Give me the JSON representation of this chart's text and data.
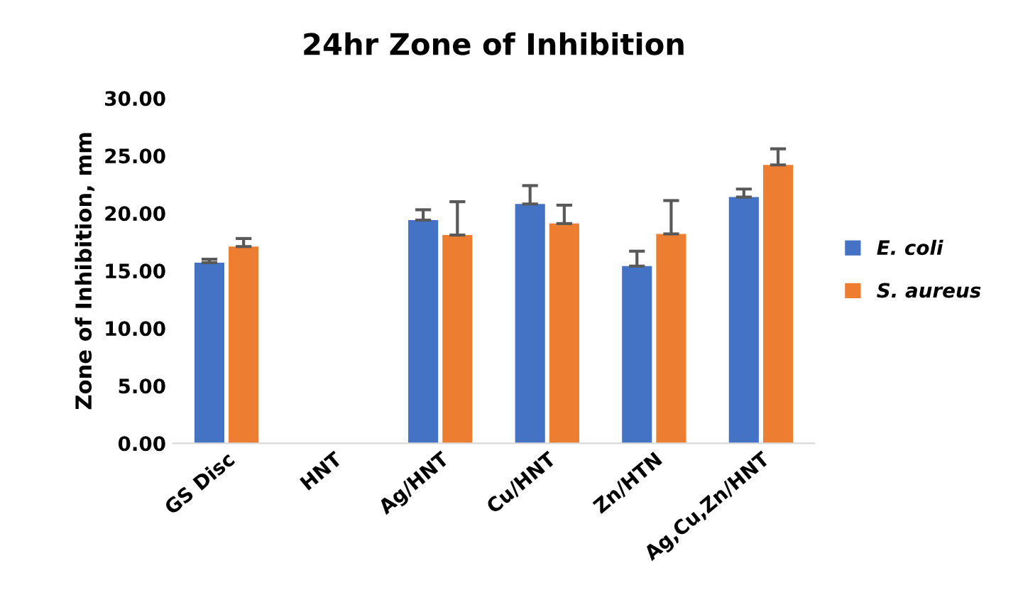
{
  "chart_data": {
    "type": "bar",
    "title": "24hr Zone of Inhibition",
    "ylabel": "Zone of Inhibition, mm",
    "categories": [
      "GS Disc",
      "HNT",
      "Ag/HNT",
      "Cu/HNT",
      "Zn/HTN",
      "Ag,Cu,Zn/HNT"
    ],
    "series": [
      {
        "name": "E. coli",
        "color": "#4472c4",
        "values": [
          15.7,
          null,
          19.4,
          20.8,
          15.4,
          21.4
        ],
        "errors": [
          [
            15.7,
            16.0
          ],
          null,
          [
            19.4,
            20.3
          ],
          [
            20.8,
            22.4
          ],
          [
            15.4,
            16.7
          ],
          [
            21.4,
            22.1
          ]
        ]
      },
      {
        "name": "S. aureus",
        "color": "#ed7d31",
        "values": [
          17.1,
          null,
          18.1,
          19.1,
          18.2,
          24.2
        ],
        "errors": [
          [
            17.1,
            17.8
          ],
          null,
          [
            18.1,
            21.0
          ],
          [
            19.1,
            20.7
          ],
          [
            18.2,
            21.1
          ],
          [
            24.2,
            25.6
          ]
        ]
      }
    ],
    "ylim": [
      0,
      30
    ],
    "yticks": [
      {
        "value": 0,
        "label": "0.00"
      },
      {
        "value": 5,
        "label": "5.00"
      },
      {
        "value": 10,
        "label": "10.00"
      },
      {
        "value": 15,
        "label": "15.00"
      },
      {
        "value": 20,
        "label": "20.00"
      },
      {
        "value": 25,
        "label": "25.00"
      },
      {
        "value": 30,
        "label": "30.00"
      }
    ],
    "grid": false,
    "legend": "right"
  }
}
